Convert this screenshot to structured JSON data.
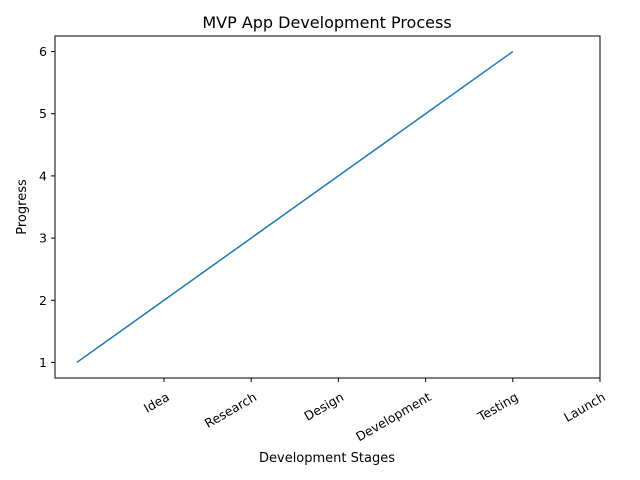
{
  "chart_data": {
    "type": "line",
    "title": "MVP App Development Process",
    "xlabel": "Development Stages",
    "ylabel": "Progress",
    "x": [
      0,
      1,
      2,
      3,
      4,
      5
    ],
    "series": [
      {
        "values": [
          1,
          2,
          3,
          4,
          5,
          6
        ],
        "color": "#1f77b4"
      }
    ],
    "xticks": [
      {
        "position": 1,
        "label": "Idea"
      },
      {
        "position": 2,
        "label": "Research"
      },
      {
        "position": 3,
        "label": "Design"
      },
      {
        "position": 4,
        "label": "Development"
      },
      {
        "position": 5,
        "label": "Testing"
      },
      {
        "position": 6,
        "label": "Launch"
      }
    ],
    "xtick_rotation": 30,
    "yticks": [
      1,
      2,
      3,
      4,
      5,
      6
    ],
    "xlim": [
      -0.25,
      6.0
    ],
    "ylim": [
      0.75,
      6.25
    ],
    "grid": false,
    "legend": false
  }
}
